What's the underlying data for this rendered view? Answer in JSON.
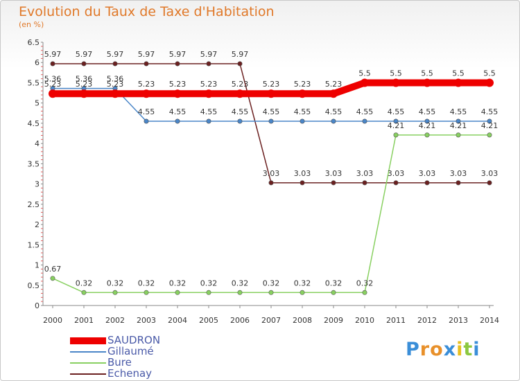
{
  "chart_data": {
    "type": "line",
    "title": "Evolution du Taux de Taxe d'Habitation",
    "subtitle": "(en %)",
    "xlabel": "",
    "ylabel": "",
    "x": [
      "2000",
      "2001",
      "2002",
      "2003",
      "2004",
      "2005",
      "2006",
      "2007",
      "2008",
      "2009",
      "2010",
      "2011",
      "2012",
      "2013",
      "2014"
    ],
    "ylim": [
      0,
      6.5
    ],
    "yticks": [
      "0",
      "0.5",
      "1",
      "1.5",
      "2",
      "2.5",
      "3",
      "3.5",
      "4",
      "4.5",
      "5",
      "5.5",
      "6",
      "6.5"
    ],
    "grid": false,
    "legend_position": "bottom-left",
    "series": [
      {
        "name": "Echenay",
        "color": "#6b2020",
        "values": [
          5.97,
          5.97,
          5.97,
          5.97,
          5.97,
          5.97,
          5.97,
          3.03,
          3.03,
          3.03,
          3.03,
          3.03,
          3.03,
          3.03,
          3.03
        ],
        "labels": [
          "5.97",
          "5.97",
          "5.97",
          "5.97",
          "5.97",
          "5.97",
          "5.97",
          "3.03",
          "3.03",
          "3.03",
          "3.03",
          "3.03",
          "3.03",
          "3.03",
          "3.03"
        ]
      },
      {
        "name": "Bure",
        "color": "#88d060",
        "values": [
          0.67,
          0.32,
          0.32,
          0.32,
          0.32,
          0.32,
          0.32,
          0.32,
          0.32,
          0.32,
          0.32,
          4.21,
          4.21,
          4.21,
          4.21
        ],
        "labels": [
          "0.67",
          "0.32",
          "0.32",
          "0.32",
          "0.32",
          "0.32",
          "0.32",
          "0.32",
          "0.32",
          "0.32",
          "0.32",
          "4.21",
          "4.21",
          "4.21",
          "4.21"
        ]
      },
      {
        "name": "Gillaumé",
        "color": "#4a86c8",
        "values": [
          5.36,
          5.36,
          5.36,
          4.55,
          4.55,
          4.55,
          4.55,
          4.55,
          4.55,
          4.55,
          4.55,
          4.55,
          4.55,
          4.55,
          4.55
        ],
        "labels": [
          "5.36",
          "5.36",
          "5.36",
          "4.55",
          "4.55",
          "4.55",
          "4.55",
          "4.55",
          "4.55",
          "4.55",
          "4.55",
          "4.55",
          "4.55",
          "4.55",
          "4.55"
        ]
      },
      {
        "name": "SAUDRON",
        "color": "#ee0000",
        "values": [
          5.23,
          5.23,
          5.23,
          5.23,
          5.23,
          5.23,
          5.23,
          5.23,
          5.23,
          5.23,
          5.5,
          5.5,
          5.5,
          5.5,
          5.5
        ],
        "labels": [
          "5.23",
          "5.23",
          "5.23",
          "5.23",
          "5.23",
          "5.23",
          "5.23",
          "5.23",
          "5.23",
          "5.23",
          "5.5",
          "5.5",
          "5.5",
          "5.5",
          "5.5"
        ]
      }
    ]
  },
  "legend": {
    "items": [
      {
        "name": "SAUDRON",
        "color": "#ee0000"
      },
      {
        "name": "Gillaumé",
        "color": "#4a86c8"
      },
      {
        "name": "Bure",
        "color": "#88d060"
      },
      {
        "name": "Echenay",
        "color": "#6b2020"
      }
    ]
  },
  "brand": {
    "letters": [
      "P",
      "r",
      "o",
      "x",
      "i",
      "t",
      "i"
    ],
    "colors": [
      "#3a8ed8",
      "#e8902a",
      "#e8902a",
      "#3a8ed8",
      "#e8c020",
      "#8cc840",
      "#3a8ed8"
    ]
  }
}
